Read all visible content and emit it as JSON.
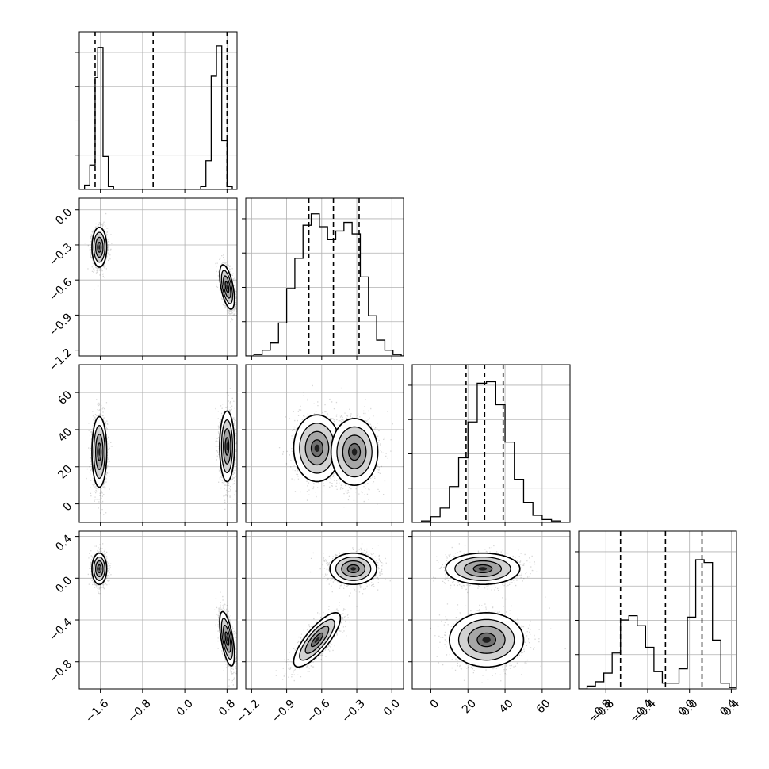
{
  "chart_data": {
    "type": "corner",
    "grid": true,
    "parameters": [
      {
        "range": [
          -2.0,
          0.99
        ],
        "ticks": [
          -1.6,
          -0.8,
          0.0,
          0.8
        ],
        "tick_labels": [
          "−1.6",
          "−0.8",
          "0.0",
          "0.8"
        ],
        "quantiles": [
          -1.7,
          -0.6,
          0.8
        ],
        "histogram": {
          "edges": [
            -2.0,
            -1.9,
            -1.8,
            -1.7,
            -1.65,
            -1.55,
            -1.45,
            -1.35,
            -1.25,
            -0.1,
            0.0,
            0.1,
            0.2,
            0.3,
            0.4,
            0.5,
            0.6,
            0.7,
            0.8,
            0.9,
            0.99
          ],
          "counts": [
            0,
            0.03,
            0.17,
            0.78,
            0.99,
            0.23,
            0.02,
            0,
            0,
            0,
            0,
            0,
            0,
            0.02,
            0.2,
            0.79,
            1.0,
            0.34,
            0.02,
            0
          ]
        }
      },
      {
        "range": [
          -1.25,
          0.1
        ],
        "ticks": [
          -1.2,
          -0.9,
          -0.6,
          -0.3,
          0.0
        ],
        "tick_labels": [
          "−1.2",
          "−0.9",
          "−0.6",
          "−0.3",
          "0.0"
        ],
        "quantiles": [
          -0.71,
          -0.5,
          -0.28
        ],
        "histogram": {
          "edges": [
            -1.25,
            -1.18,
            -1.11,
            -1.04,
            -0.97,
            -0.9,
            -0.83,
            -0.76,
            -0.69,
            -0.62,
            -0.55,
            -0.48,
            -0.41,
            -0.34,
            -0.27,
            -0.2,
            -0.13,
            -0.06,
            0.01,
            0.08,
            0.1
          ],
          "counts": [
            0,
            0.01,
            0.04,
            0.09,
            0.23,
            0.47,
            0.68,
            0.91,
            0.99,
            0.9,
            0.81,
            0.87,
            0.93,
            0.85,
            0.55,
            0.28,
            0.11,
            0.04,
            0.01,
            0
          ]
        }
      },
      {
        "range": [
          -10,
          75
        ],
        "ticks": [
          0,
          20,
          40,
          60
        ],
        "tick_labels": [
          "0",
          "20",
          "40",
          "60"
        ],
        "quantiles": [
          19,
          29,
          39
        ],
        "histogram": {
          "edges": [
            -10,
            -5,
            0,
            5,
            10,
            15,
            20,
            25,
            30,
            35,
            40,
            45,
            50,
            55,
            60,
            65,
            70,
            75
          ],
          "counts": [
            0,
            0.01,
            0.04,
            0.1,
            0.25,
            0.45,
            0.7,
            0.97,
            0.98,
            0.82,
            0.56,
            0.3,
            0.14,
            0.05,
            0.02,
            0.01,
            0
          ]
        }
      },
      {
        "range": [
          -1.06,
          0.45
        ],
        "ticks": [
          -0.8,
          -0.4,
          0.0,
          0.4
        ],
        "tick_labels": [
          "−0.8",
          "−0.4",
          "0.0",
          "0.4"
        ],
        "quantiles": [
          -0.66,
          -0.23,
          0.12
        ],
        "histogram": {
          "edges": [
            -1.06,
            -0.98,
            -0.9,
            -0.82,
            -0.74,
            -0.66,
            -0.58,
            -0.5,
            -0.42,
            -0.34,
            -0.26,
            -0.18,
            -0.1,
            -0.02,
            0.06,
            0.14,
            0.22,
            0.3,
            0.38,
            0.45
          ],
          "counts": [
            0,
            0.02,
            0.05,
            0.11,
            0.25,
            0.48,
            0.51,
            0.44,
            0.29,
            0.12,
            0.04,
            0.04,
            0.14,
            0.5,
            0.9,
            0.88,
            0.34,
            0.04,
            0.01
          ]
        }
      }
    ],
    "blobs": [
      {
        "row": 1,
        "col": 0,
        "clusters": [
          {
            "mx": -1.62,
            "my": -0.32,
            "sx": 0.07,
            "sy": 0.085,
            "rho": 0.0,
            "w": 1
          },
          {
            "mx": 0.8,
            "my": -0.66,
            "sx": 0.07,
            "sy": 0.095,
            "rho": -0.55,
            "w": 1
          }
        ]
      },
      {
        "row": 2,
        "col": 0,
        "clusters": [
          {
            "mx": -1.62,
            "my": 28,
            "sx": 0.07,
            "sy": 9.5,
            "rho": 0.0,
            "w": 1
          },
          {
            "mx": 0.8,
            "my": 31,
            "sx": 0.07,
            "sy": 9.5,
            "rho": 0.0,
            "w": 1
          }
        ]
      },
      {
        "row": 2,
        "col": 1,
        "clusters": [
          {
            "mx": -0.64,
            "my": 30,
            "sx": 0.1,
            "sy": 9.0,
            "rho": 0.0,
            "w": 1
          },
          {
            "mx": -0.32,
            "my": 28,
            "sx": 0.1,
            "sy": 9.0,
            "rho": 0.0,
            "w": 1
          }
        ]
      },
      {
        "row": 3,
        "col": 0,
        "clusters": [
          {
            "mx": -1.62,
            "my": 0.09,
            "sx": 0.07,
            "sy": 0.075,
            "rho": 0.0,
            "w": 1
          },
          {
            "mx": 0.8,
            "my": -0.58,
            "sx": 0.07,
            "sy": 0.13,
            "rho": -0.6,
            "w": 1
          }
        ]
      },
      {
        "row": 3,
        "col": 1,
        "clusters": [
          {
            "mx": -0.33,
            "my": 0.09,
            "sx": 0.1,
            "sy": 0.075,
            "rho": 0.0,
            "w": 1
          },
          {
            "mx": -0.64,
            "my": -0.59,
            "sx": 0.1,
            "sy": 0.13,
            "rho": 0.8,
            "w": 1
          }
        ]
      },
      {
        "row": 3,
        "col": 2,
        "clusters": [
          {
            "mx": 28,
            "my": 0.09,
            "sx": 10,
            "sy": 0.075,
            "rho": 0.0,
            "w": 1
          },
          {
            "mx": 30,
            "my": -0.59,
            "sx": 10,
            "sy": 0.13,
            "rho": 0.0,
            "w": 1
          }
        ]
      }
    ]
  }
}
